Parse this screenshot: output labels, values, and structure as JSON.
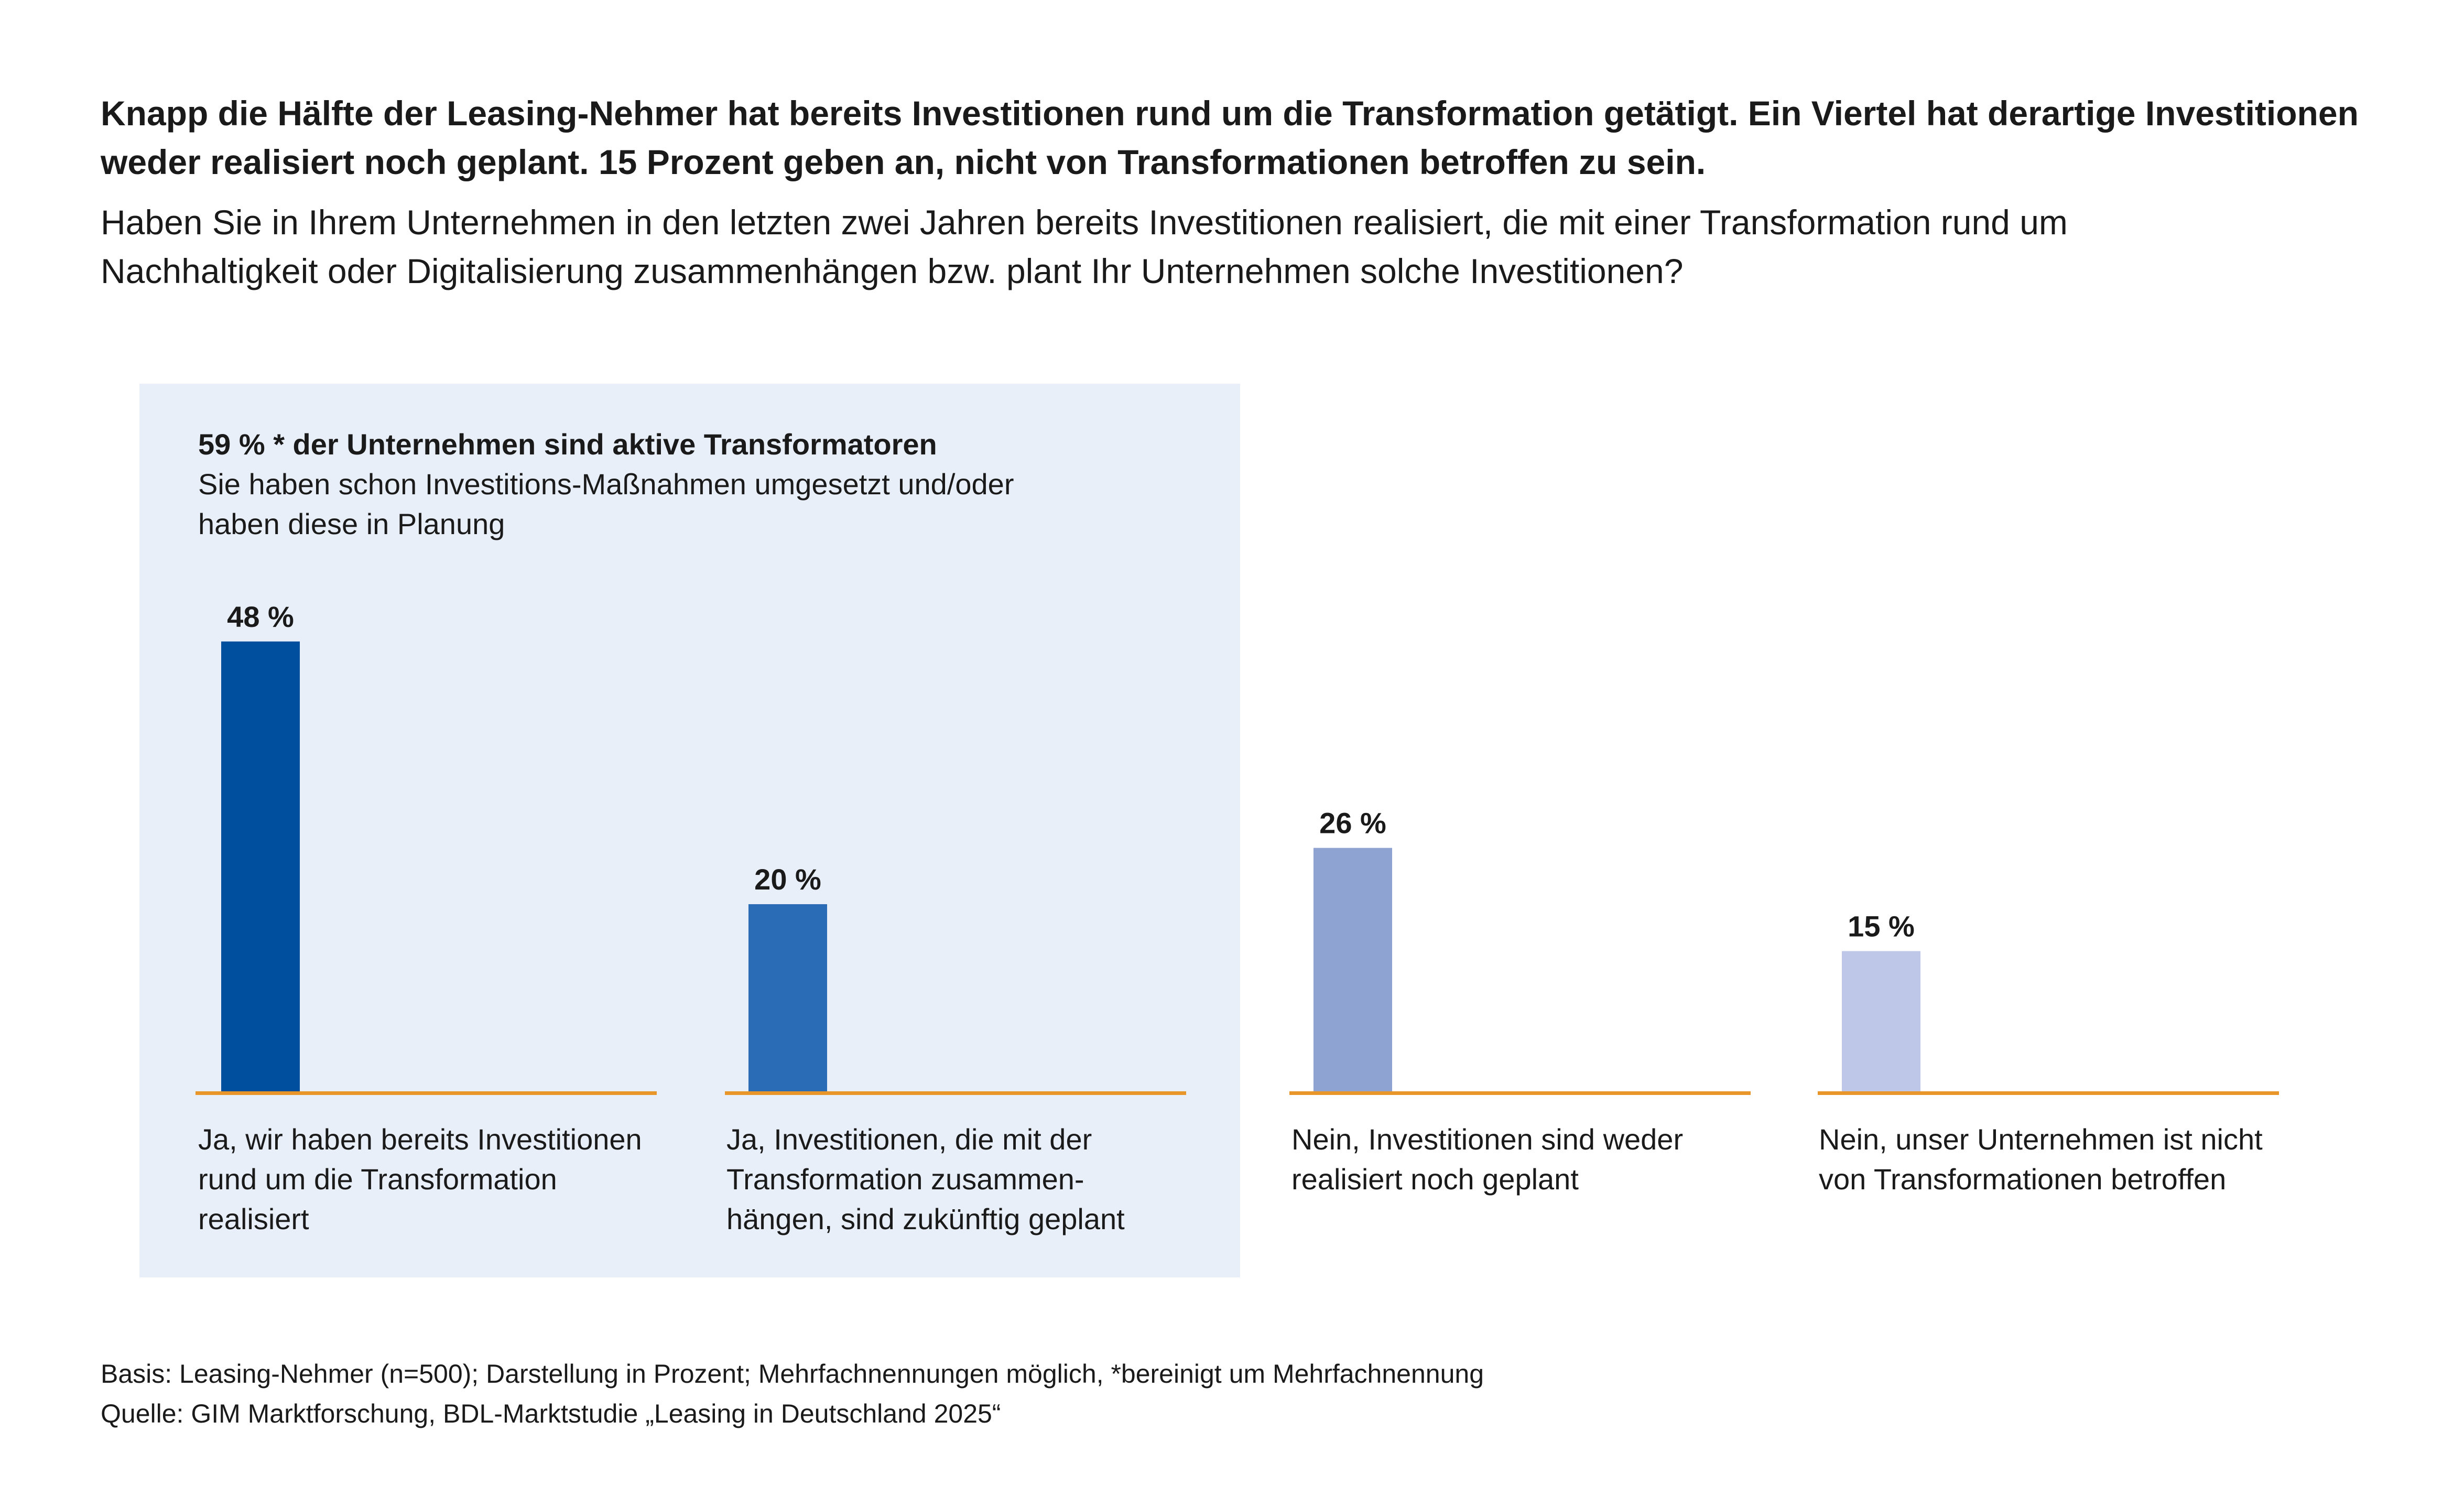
{
  "header": {
    "headline": "Knapp die Hälfte der Leasing-Nehmer hat bereits Investitionen rund um die Transformation getätigt. Ein Viertel hat derartige Investitionen weder realisiert noch geplant. 15 Prozent geben an, nicht von Transformationen betroffen zu sein.",
    "question": "Haben Sie in Ihrem Unternehmen in den letzten zwei Jahren bereits Investitionen realisiert, die mit einer Transformation rund um Nachhaltigkeit oder Digitalisierung zusammenhängen bzw. plant Ihr Unternehmen solche Investitionen?"
  },
  "highlight": {
    "title": "59 % * der Unternehmen sind aktive Transformatoren",
    "text": "Sie haben schon Investitions-Maßnahmen umgesetzt und/oder haben diese in Planung"
  },
  "chart_data": {
    "type": "bar",
    "unit": "%",
    "categories": [
      "Ja, wir haben bereits Investitionen rund um die Transformation realisiert",
      "Ja, Investitionen, die mit der Transformation zusammen-hängen, sind zukünftig geplant",
      "Nein, Investitionen sind weder realisiert noch geplant",
      "Nein, unser Unternehmen ist nicht von Transformationen betroffen"
    ],
    "values": [
      48,
      20,
      26,
      15
    ],
    "value_labels": [
      "48 %",
      "20 %",
      "26 %",
      "15 %"
    ],
    "colors": [
      "#004f9f",
      "#2a6cb5",
      "#8fa3d2",
      "#bec7e7"
    ],
    "baseline_color": "#e8962a",
    "grid": false,
    "legend": "none"
  },
  "footnotes": {
    "basis": "Basis: Leasing-Nehmer (n=500); Darstellung in Prozent; Mehrfachnennungen möglich, *bereinigt um Mehrfachnennung",
    "source": "Quelle: GIM Marktforschung, BDL-Marktstudie „Leasing in Deutschland 2025“"
  }
}
